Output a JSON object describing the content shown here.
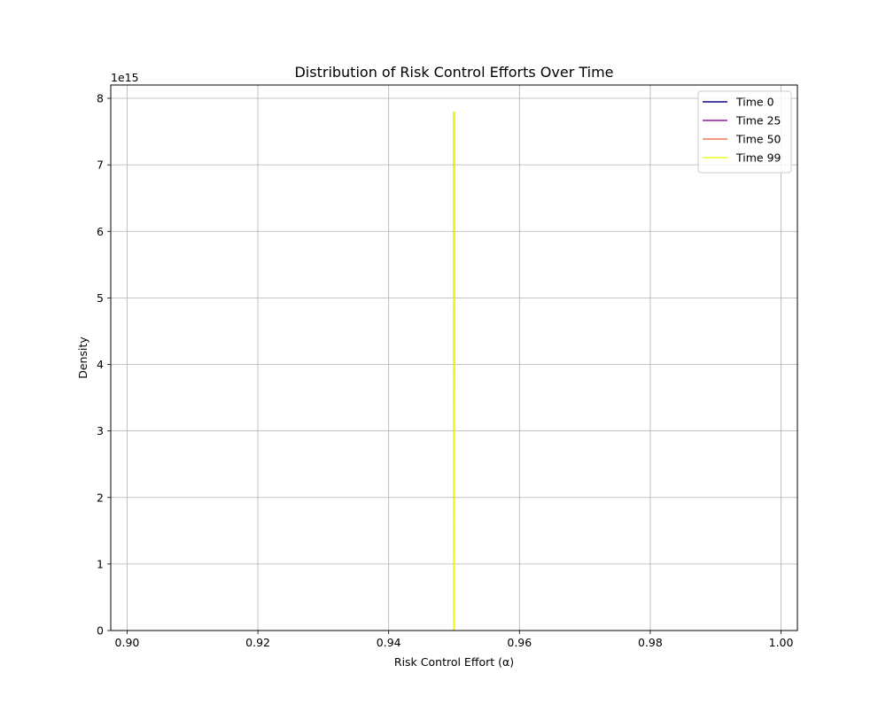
{
  "chart_data": {
    "type": "line",
    "title": "Distribution of Risk Control Efforts Over Time",
    "xlabel": "Risk Control Effort (α)",
    "ylabel": "Density",
    "y_offset_label": "1e15",
    "y_scale_factor": 1000000000000000.0,
    "xlim": [
      0.8975,
      1.0025
    ],
    "ylim": [
      0,
      8.2
    ],
    "x_ticks": [
      0.9,
      0.92,
      0.94,
      0.96,
      0.98,
      1.0
    ],
    "x_tick_labels": [
      "0.90",
      "0.92",
      "0.94",
      "0.96",
      "0.98",
      "1.00"
    ],
    "y_ticks": [
      0,
      1,
      2,
      3,
      4,
      5,
      6,
      7,
      8
    ],
    "y_tick_labels": [
      "0",
      "1",
      "2",
      "3",
      "4",
      "5",
      "6",
      "7",
      "8"
    ],
    "grid": true,
    "legend_position": "top-right",
    "series": [
      {
        "name": "Time 0",
        "color": "#0d0887",
        "x": [
          0.94996,
          0.94998,
          0.95,
          0.95002,
          0.95004
        ],
        "y": [
          0,
          0.05,
          7.8,
          0.05,
          0
        ]
      },
      {
        "name": "Time 25",
        "color": "#9c179e",
        "x": [
          0.94996,
          0.94998,
          0.95,
          0.95002,
          0.95004
        ],
        "y": [
          0,
          0.05,
          7.8,
          0.05,
          0
        ]
      },
      {
        "name": "Time 50",
        "color": "#ed7953",
        "x": [
          0.94996,
          0.94998,
          0.95,
          0.95002,
          0.95004
        ],
        "y": [
          0,
          0.05,
          7.8,
          0.05,
          0
        ]
      },
      {
        "name": "Time 99",
        "color": "#f0f921",
        "x": [
          0.94996,
          0.94998,
          0.95,
          0.95002,
          0.95004
        ],
        "y": [
          0,
          0.05,
          7.8,
          0.05,
          0
        ]
      }
    ]
  }
}
